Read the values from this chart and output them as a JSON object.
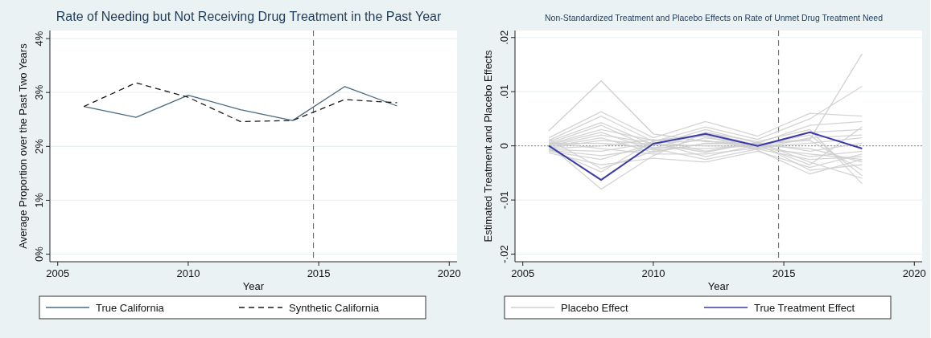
{
  "chart_data": [
    {
      "type": "line",
      "title": "Rate of Needing but Not Receiving Drug Treatment in the Past Year",
      "xlabel": "Year",
      "ylabel": "Average Proportion over the Past Two Years",
      "x": [
        2006,
        2008,
        2010,
        2012,
        2014,
        2016,
        2018
      ],
      "series": [
        {
          "name": "True California",
          "color": "#4a6a80",
          "values": [
            2.74,
            2.54,
            2.95,
            2.68,
            2.48,
            3.11,
            2.75
          ]
        },
        {
          "name": "Synthetic California",
          "color": "#1a1a1a",
          "line_style": "dashed",
          "values": [
            2.74,
            3.18,
            2.91,
            2.46,
            2.48,
            2.87,
            2.81
          ]
        }
      ],
      "xlim": [
        2004.7,
        2020.3
      ],
      "xticks": [
        2005,
        2010,
        2015,
        2020
      ],
      "ylim": [
        -0.14,
        4.15
      ],
      "yticks": [
        {
          "value": 0,
          "label": "0%"
        },
        {
          "value": 1,
          "label": "1%"
        },
        {
          "value": 2,
          "label": "2%"
        },
        {
          "value": 3,
          "label": "3%"
        },
        {
          "value": 4,
          "label": "4%"
        }
      ],
      "grid": "y",
      "legend": "bottom",
      "ref_lines": [
        {
          "axis": "x",
          "value": 2014.8,
          "color": "#666666",
          "line_style": "dashed"
        }
      ]
    },
    {
      "type": "line",
      "title": "Non-Standardized Treatment and Placebo Effects on Rate of Unmet Drug Treatment Need",
      "xlabel": "Year",
      "ylabel": "Estimated Treatment and Placebo Effects",
      "x": [
        2006,
        2008,
        2010,
        2012,
        2014,
        2016,
        2018
      ],
      "series": [
        {
          "name": "Placebo Effect",
          "color": "#cfcfcf",
          "values": [
            0.0028,
            0.012,
            0.0022,
            0.0008,
            0.0004,
            0.0012,
            0.017
          ]
        },
        {
          "color": "#cfcfcf",
          "values": [
            0.0015,
            0.0063,
            0.0015,
            0.0045,
            0.0018,
            0.006,
            0.0055
          ]
        },
        {
          "color": "#cfcfcf",
          "values": [
            0.001,
            0.0055,
            0.0008,
            0.0035,
            0.0012,
            0.005,
            0.011
          ]
        },
        {
          "color": "#cfcfcf",
          "values": [
            0.0008,
            0.0043,
            0.0002,
            0.003,
            0.0005,
            0.0038,
            0.0045
          ]
        },
        {
          "color": "#cfcfcf",
          "values": [
            0.0005,
            0.0038,
            -0.0005,
            0.0025,
            0.0008,
            0.003,
            -0.007
          ]
        },
        {
          "color": "#cfcfcf",
          "values": [
            0.0003,
            0.003,
            0.001,
            0.002,
            -0.0003,
            0.0025,
            0.003
          ]
        },
        {
          "color": "#cfcfcf",
          "values": [
            0.0002,
            0.0025,
            -0.0008,
            0.0015,
            0.0002,
            0.002,
            -0.0055
          ]
        },
        {
          "color": "#cfcfcf",
          "values": [
            0,
            0.002,
            0.0005,
            0.001,
            -0.0005,
            0.0015,
            0.002
          ]
        },
        {
          "color": "#cfcfcf",
          "values": [
            -0.0002,
            0.0015,
            -0.0012,
            0.0005,
            0.0003,
            0.001,
            -0.0045
          ]
        },
        {
          "color": "#cfcfcf",
          "values": [
            -0.0004,
            0.001,
            0.0003,
            0,
            -0.0002,
            0.0005,
            0.0015
          ]
        },
        {
          "color": "#cfcfcf",
          "values": [
            0.0004,
            0.0005,
            -0.0003,
            -0.0005,
            0.0001,
            -0.0005,
            -0.003
          ]
        },
        {
          "color": "#cfcfcf",
          "values": [
            -0.0005,
            0,
            0.0012,
            -0.001,
            0.0006,
            -0.001,
            0.0005
          ]
        },
        {
          "color": "#cfcfcf",
          "values": [
            0.0006,
            -0.0005,
            -0.0015,
            -0.0015,
            -0.0004,
            -0.0015,
            -0.0025
          ]
        },
        {
          "color": "#cfcfcf",
          "values": [
            -0.0007,
            -0.001,
            0.0006,
            -0.002,
            0.0002,
            -0.002,
            -0.001
          ]
        },
        {
          "color": "#cfcfcf",
          "values": [
            -0.0008,
            -0.0018,
            -0.0005,
            -0.0025,
            -0.0006,
            -0.0025,
            -0.002
          ]
        },
        {
          "color": "#cfcfcf",
          "values": [
            -0.001,
            -0.0025,
            0.0004,
            -0.0012,
            0.0007,
            -0.003,
            -0.006
          ]
        },
        {
          "color": "#cfcfcf",
          "values": [
            -0.0013,
            -0.0035,
            -0.0023,
            -0.003,
            -0.001,
            -0.004,
            -0.0015
          ]
        },
        {
          "color": "#cfcfcf",
          "values": [
            0.0012,
            -0.0042,
            -0.001,
            0.0004,
            0.0004,
            -0.0045,
            -0.0035
          ]
        },
        {
          "color": "#cfcfcf",
          "values": [
            -0.0006,
            -0.0048,
            0.0009,
            0.0018,
            -0.0008,
            -0.0052,
            -0.0025
          ]
        },
        {
          "color": "#cfcfcf",
          "values": [
            0.0001,
            -0.008,
            -0.0018,
            0.0025,
            0.0001,
            -0.0035,
            0.0035
          ]
        },
        {
          "name": "True Treatment Effect",
          "color": "#3b3ba8",
          "values": [
            0,
            -0.0063,
            0.0004,
            0.0022,
            0,
            0.0025,
            -0.0005
          ]
        }
      ],
      "xlim": [
        2004.7,
        2020.3
      ],
      "xticks": [
        2005,
        2010,
        2015,
        2020
      ],
      "ylim": [
        -0.0214,
        0.0213
      ],
      "yticks": [
        {
          "value": -0.02,
          "label": "-.02"
        },
        {
          "value": -0.01,
          "label": "-.01"
        },
        0,
        {
          "value": 0.01,
          "label": ".01"
        },
        {
          "value": 0.02,
          "label": ".02"
        }
      ],
      "grid": "y",
      "legend": "bottom",
      "ref_lines": [
        {
          "axis": "x",
          "value": 2014.8,
          "color": "#666666",
          "line_style": "dashed"
        },
        {
          "axis": "y",
          "value": 0,
          "color": "#888888",
          "line_style": "dotted"
        }
      ]
    }
  ]
}
